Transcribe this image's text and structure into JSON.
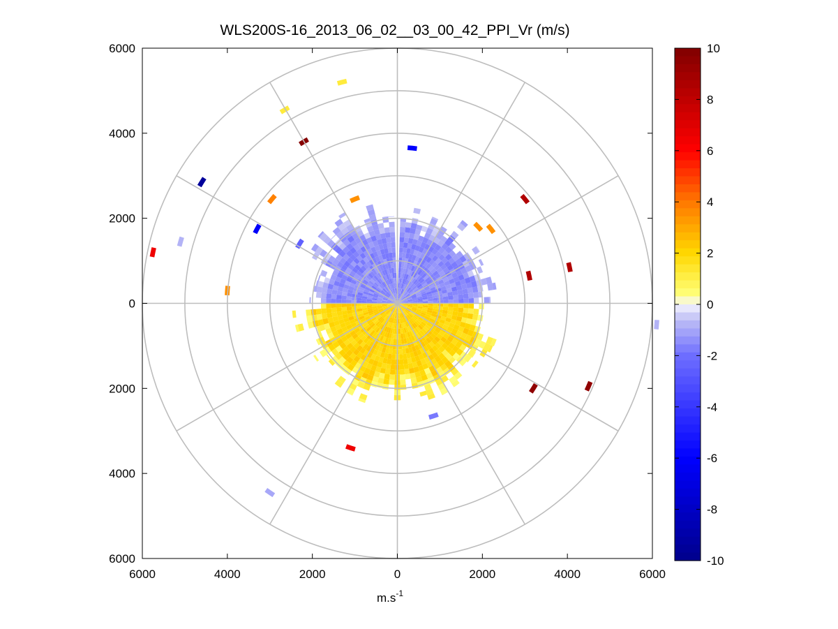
{
  "chart_data": {
    "type": "heatmap",
    "title": "WLS200S-16_2013_06_02__03_00_42_PPI_Vr (m/s)",
    "xlabel": "m.s",
    "xlabel_superscript": "-1",
    "xlim": [
      -6000,
      6000
    ],
    "ylim": [
      -6000,
      6000
    ],
    "x_ticks": [
      -6000,
      -4000,
      -2000,
      0,
      2000,
      4000,
      6000
    ],
    "x_tick_labels": [
      "6000",
      "4000",
      "2000",
      "0",
      "2000",
      "4000",
      "6000"
    ],
    "y_ticks": [
      6000,
      4000,
      2000,
      0,
      -2000,
      -4000,
      -6000
    ],
    "y_tick_labels": [
      "6000",
      "4000",
      "2000",
      "0",
      "2000",
      "4000",
      "6000"
    ],
    "polar_grid": {
      "rings": [
        1000,
        2000,
        3000,
        4000,
        5000,
        6000
      ],
      "spokes_deg": [
        0,
        30,
        60,
        90,
        120,
        150
      ]
    },
    "colorbar": {
      "min": -10,
      "max": 10,
      "ticks": [
        -10,
        -8,
        -6,
        -4,
        -2,
        0,
        2,
        4,
        6,
        8,
        10
      ],
      "tick_labels": [
        "-10",
        "-8",
        "-6",
        "-4",
        "-2",
        "0",
        "2",
        "4",
        "6",
        "8",
        "10"
      ]
    },
    "dense_region": {
      "inner_radius": 0,
      "outer_radius_range": [
        1900,
        2500
      ],
      "northern_half_value": -1.5,
      "southern_half_value": 2.0,
      "gap_azimuth_deg": [
        -1,
        2
      ]
    },
    "scattered_points": [
      {
        "x": -1300,
        "y": 5200,
        "value": 1.2
      },
      {
        "x": -2650,
        "y": 4550,
        "value": 1.2
      },
      {
        "x": -2200,
        "y": 3800,
        "value": 9.8
      },
      {
        "x": -4600,
        "y": 2850,
        "value": -9.5
      },
      {
        "x": 350,
        "y": 3650,
        "value": -6.0
      },
      {
        "x": -2950,
        "y": 2450,
        "value": 3.8
      },
      {
        "x": -3300,
        "y": 1750,
        "value": -6.2
      },
      {
        "x": -5750,
        "y": 1200,
        "value": 6.5
      },
      {
        "x": -5100,
        "y": 1450,
        "value": -0.8
      },
      {
        "x": -1000,
        "y": 2450,
        "value": 3.5
      },
      {
        "x": 3000,
        "y": 2450,
        "value": 8.5
      },
      {
        "x": 1900,
        "y": 1800,
        "value": 3.5
      },
      {
        "x": 2200,
        "y": 1750,
        "value": 3.5
      },
      {
        "x": 4050,
        "y": 850,
        "value": 8.5
      },
      {
        "x": 3100,
        "y": 650,
        "value": 8.5
      },
      {
        "x": -4000,
        "y": 300,
        "value": 3.5
      },
      {
        "x": -2300,
        "y": 1400,
        "value": -2.5
      },
      {
        "x": 3200,
        "y": -2000,
        "value": 9.5
      },
      {
        "x": 4500,
        "y": -1950,
        "value": 9.5
      },
      {
        "x": -1100,
        "y": -3400,
        "value": 6.5
      },
      {
        "x": 850,
        "y": -2650,
        "value": -1.8
      },
      {
        "x": -3000,
        "y": -4450,
        "value": -1.0
      },
      {
        "x": 6100,
        "y": -500,
        "value": -0.8
      }
    ]
  }
}
